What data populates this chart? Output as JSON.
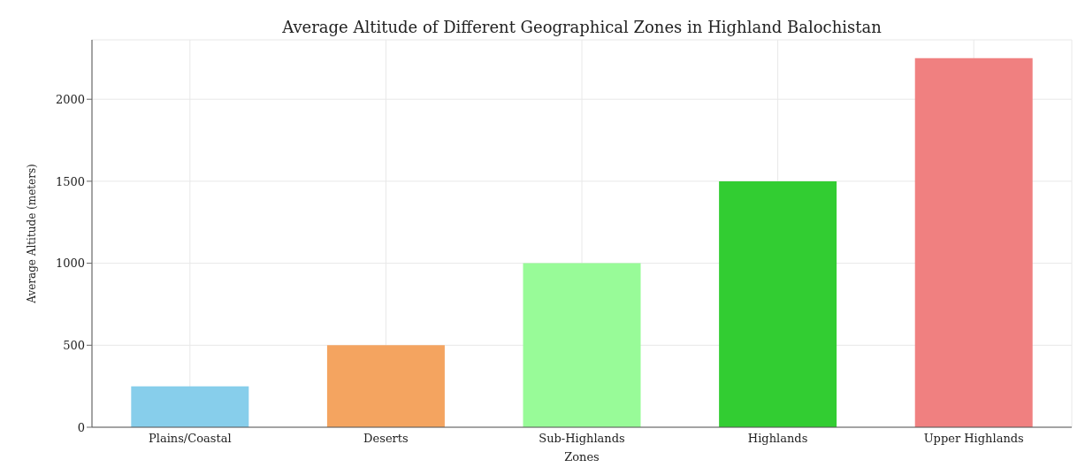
{
  "chart_data": {
    "type": "bar",
    "title": "Average Altitude of Different Geographical Zones in Highland Balochistan",
    "xlabel": "Zones",
    "ylabel": "Average Altitude (meters)",
    "categories": [
      "Plains/Coastal",
      "Deserts",
      "Sub-Highlands",
      "Highlands",
      "Upper Highlands"
    ],
    "values": [
      250,
      500,
      1000,
      1500,
      2250
    ],
    "colors": [
      "#87ceeb",
      "#f4a460",
      "#98fb98",
      "#32cd32",
      "#f08080"
    ],
    "ylim": [
      0,
      2362.5
    ],
    "yticks": [
      0,
      500,
      1000,
      1500,
      2000
    ],
    "grid": true
  }
}
